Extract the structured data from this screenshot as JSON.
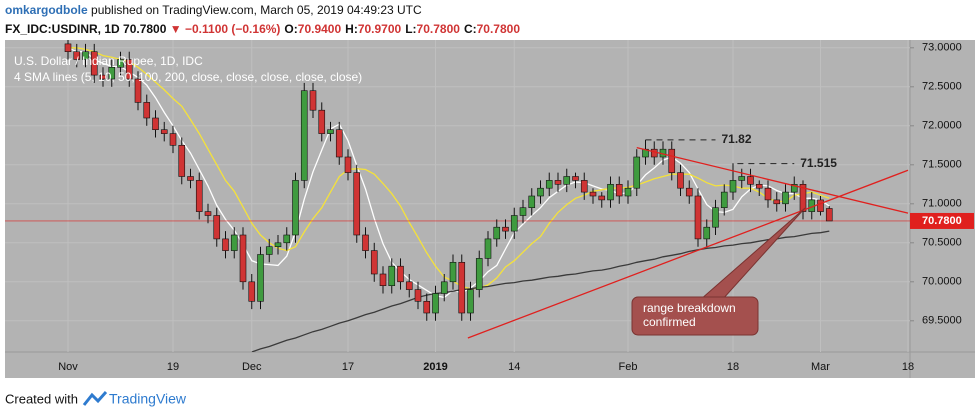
{
  "header": {
    "user": "omkargodbole",
    "published": "published on TradingView.com, March 05, 2019 04:49:23 UTC",
    "symbol": "FX_IDC:USDINR, 1D",
    "last": "70.7800",
    "change": "−0.1100 (−0.16%)",
    "ohlc": [
      {
        "key": "O:",
        "value": "70.9400"
      },
      {
        "key": "H:",
        "value": "70.9700"
      },
      {
        "key": "L:",
        "value": "70.7800"
      },
      {
        "key": "C:",
        "value": "70.7800"
      }
    ]
  },
  "footer": {
    "text": "Created with",
    "brand": "TradingView"
  },
  "chart_data": {
    "type": "candlestick",
    "title": "U.S. Dollar / Indian Rupee, 1D, IDC",
    "subtitle": "4 SMA lines (5, 10, 50, 100, 200, close, close, close, close, close)",
    "categories": [
      "Nov",
      null,
      null,
      null,
      null,
      null,
      null,
      null,
      null,
      null,
      null,
      null,
      "19",
      null,
      null,
      null,
      null,
      null,
      null,
      null,
      null,
      "Dec",
      null,
      null,
      null,
      null,
      null,
      null,
      null,
      null,
      null,
      null,
      "17",
      null,
      null,
      null,
      null,
      null,
      null,
      null,
      null,
      null,
      "2019",
      null,
      null,
      null,
      null,
      null,
      null,
      null,
      null,
      "14",
      null,
      null,
      null,
      null,
      null,
      null,
      null,
      null,
      null,
      null,
      null,
      null,
      "Feb",
      null,
      null,
      null,
      null,
      null,
      null,
      null,
      null,
      null,
      null,
      null,
      "18",
      null,
      null,
      null,
      null,
      null,
      null,
      null,
      null,
      null,
      "Mar",
      null,
      null,
      null,
      null,
      null,
      null,
      null,
      null,
      null,
      "18"
    ],
    "ohlc": [
      [
        73.05,
        73.15,
        72.85,
        72.95
      ],
      [
        72.95,
        73.05,
        72.75,
        72.85
      ],
      [
        72.85,
        73.05,
        72.75,
        72.95
      ],
      [
        72.95,
        73.05,
        72.55,
        72.65
      ],
      [
        72.65,
        72.75,
        72.5,
        72.6
      ],
      [
        72.6,
        72.85,
        72.5,
        72.75
      ],
      [
        72.75,
        72.95,
        72.65,
        72.85
      ],
      [
        72.85,
        72.95,
        72.5,
        72.6
      ],
      [
        72.6,
        72.7,
        72.2,
        72.3
      ],
      [
        72.3,
        72.4,
        72.0,
        72.1
      ],
      [
        72.1,
        72.2,
        71.85,
        71.95
      ],
      [
        71.95,
        72.05,
        71.8,
        71.9
      ],
      [
        71.9,
        72.0,
        71.65,
        71.75
      ],
      [
        71.75,
        71.85,
        71.25,
        71.35
      ],
      [
        71.35,
        71.45,
        71.2,
        71.3
      ],
      [
        71.3,
        71.4,
        70.8,
        70.9
      ],
      [
        70.9,
        71.0,
        70.75,
        70.85
      ],
      [
        70.85,
        70.95,
        70.45,
        70.55
      ],
      [
        70.55,
        70.65,
        70.3,
        70.4
      ],
      [
        70.4,
        70.7,
        70.3,
        70.6
      ],
      [
        70.6,
        70.7,
        69.9,
        70.0
      ],
      [
        70.0,
        70.1,
        69.65,
        69.75
      ],
      [
        69.75,
        70.45,
        69.65,
        70.35
      ],
      [
        70.35,
        70.55,
        70.25,
        70.45
      ],
      [
        70.45,
        70.6,
        70.35,
        70.5
      ],
      [
        70.5,
        70.7,
        70.4,
        70.6
      ],
      [
        70.6,
        71.4,
        70.5,
        71.3
      ],
      [
        71.3,
        72.55,
        71.2,
        72.45
      ],
      [
        72.45,
        72.55,
        72.1,
        72.2
      ],
      [
        72.2,
        72.3,
        71.8,
        71.9
      ],
      [
        71.9,
        72.05,
        71.8,
        71.95
      ],
      [
        71.95,
        72.05,
        71.5,
        71.6
      ],
      [
        71.6,
        71.7,
        71.3,
        71.4
      ],
      [
        71.4,
        71.5,
        70.5,
        70.6
      ],
      [
        70.6,
        70.7,
        70.3,
        70.4
      ],
      [
        70.4,
        70.5,
        70.0,
        70.1
      ],
      [
        70.1,
        70.2,
        69.85,
        69.95
      ],
      [
        69.95,
        70.3,
        69.85,
        70.2
      ],
      [
        70.2,
        70.3,
        69.9,
        70.0
      ],
      [
        70.0,
        70.1,
        69.8,
        69.9
      ],
      [
        69.9,
        70.0,
        69.65,
        69.75
      ],
      [
        69.75,
        69.85,
        69.5,
        69.6
      ],
      [
        69.6,
        69.95,
        69.5,
        69.85
      ],
      [
        69.85,
        70.1,
        69.75,
        70.0
      ],
      [
        70.0,
        70.35,
        69.9,
        70.25
      ],
      [
        70.25,
        70.35,
        69.5,
        69.6
      ],
      [
        69.6,
        70.0,
        69.5,
        69.9
      ],
      [
        69.9,
        70.4,
        69.8,
        70.3
      ],
      [
        70.3,
        70.65,
        70.2,
        70.55
      ],
      [
        70.55,
        70.8,
        70.45,
        70.7
      ],
      [
        70.7,
        70.8,
        70.55,
        70.65
      ],
      [
        70.65,
        70.95,
        70.55,
        70.85
      ],
      [
        70.85,
        71.05,
        70.75,
        70.95
      ],
      [
        70.95,
        71.2,
        70.85,
        71.1
      ],
      [
        71.1,
        71.3,
        71.0,
        71.2
      ],
      [
        71.2,
        71.4,
        71.1,
        71.3
      ],
      [
        71.3,
        71.4,
        71.15,
        71.25
      ],
      [
        71.25,
        71.45,
        71.15,
        71.35
      ],
      [
        71.35,
        71.4,
        71.2,
        71.3
      ],
      [
        71.3,
        71.4,
        71.05,
        71.15
      ],
      [
        71.15,
        71.2,
        71.0,
        71.1
      ],
      [
        71.1,
        71.15,
        70.95,
        71.05
      ],
      [
        71.05,
        71.35,
        70.95,
        71.25
      ],
      [
        71.25,
        71.35,
        71.0,
        71.1
      ],
      [
        71.1,
        71.3,
        71.0,
        71.2
      ],
      [
        71.2,
        71.7,
        71.1,
        71.6
      ],
      [
        71.6,
        71.82,
        71.5,
        71.7
      ],
      [
        71.7,
        71.8,
        71.5,
        71.6
      ],
      [
        71.6,
        71.8,
        71.5,
        71.7
      ],
      [
        71.7,
        71.8,
        71.3,
        71.4
      ],
      [
        71.4,
        71.5,
        71.1,
        71.2
      ],
      [
        71.2,
        71.3,
        71.0,
        71.1
      ],
      [
        71.1,
        71.2,
        70.45,
        70.55
      ],
      [
        70.55,
        70.8,
        70.45,
        70.7
      ],
      [
        70.7,
        71.05,
        70.6,
        70.95
      ],
      [
        70.95,
        71.25,
        70.85,
        71.15
      ],
      [
        71.15,
        71.52,
        71.05,
        71.3
      ],
      [
        71.3,
        71.45,
        71.2,
        71.35
      ],
      [
        71.35,
        71.45,
        71.15,
        71.25
      ],
      [
        71.25,
        71.3,
        71.1,
        71.2
      ],
      [
        71.2,
        71.3,
        70.95,
        71.05
      ],
      [
        71.05,
        71.15,
        70.9,
        71.0
      ],
      [
        71.0,
        71.25,
        70.9,
        71.15
      ],
      [
        71.15,
        71.35,
        71.05,
        71.25
      ],
      [
        71.25,
        71.3,
        70.8,
        70.9
      ],
      [
        70.9,
        71.15,
        70.8,
        71.05
      ],
      [
        71.05,
        71.1,
        70.85,
        70.9
      ],
      [
        70.94,
        70.97,
        70.78,
        70.78
      ],
      null,
      null,
      null,
      null,
      null,
      null,
      null,
      null,
      null
    ],
    "up_color": "#3f9b3f",
    "down_color": "#d03434",
    "series": [
      {
        "color": "#ffffff",
        "values": [
          73.0,
          72.95,
          72.95,
          72.85,
          72.8,
          72.76,
          72.76,
          72.69,
          72.62,
          72.52,
          72.36,
          72.17,
          72.0,
          71.81,
          71.65,
          71.44,
          71.23,
          70.98,
          70.8,
          70.66,
          70.48,
          70.27,
          70.23,
          70.22,
          70.21,
          70.33,
          70.64,
          71.06,
          71.41,
          71.69,
          71.96,
          72.02,
          71.81,
          71.49,
          71.19,
          70.81,
          70.49,
          70.25,
          70.13,
          70.03,
          69.96,
          69.89,
          69.82,
          69.8,
          69.89,
          69.86,
          69.92,
          70.01,
          70.13,
          70.21,
          70.42,
          70.63,
          70.74,
          70.85,
          70.95,
          71.08,
          71.16,
          71.24,
          71.28,
          71.27,
          71.23,
          71.19,
          71.17,
          71.13,
          71.14,
          71.24,
          71.37,
          71.46,
          71.56,
          71.6,
          71.52,
          71.4,
          71.19,
          70.99,
          70.9,
          70.89,
          70.93,
          71.09,
          71.19,
          71.24,
          71.23,
          71.17,
          71.13,
          71.13,
          71.07,
          71.07,
          71.05,
          70.97,
          null,
          null,
          null,
          null,
          null,
          null,
          null,
          null,
          null
        ]
      },
      {
        "color": "#f5e23a",
        "values": [
          73.0,
          73.0,
          72.98,
          72.95,
          72.9,
          72.88,
          72.85,
          72.82,
          72.75,
          72.66,
          72.56,
          72.46,
          72.35,
          72.25,
          72.08,
          71.9,
          71.7,
          71.5,
          71.3,
          71.16,
          70.96,
          70.75,
          70.6,
          70.5,
          70.43,
          70.4,
          70.45,
          70.64,
          70.81,
          70.95,
          71.15,
          71.35,
          71.44,
          71.45,
          71.44,
          71.38,
          71.26,
          71.13,
          70.97,
          70.76,
          70.57,
          70.37,
          70.2,
          70.06,
          70.01,
          69.94,
          69.91,
          69.92,
          69.96,
          70.05,
          70.19,
          70.27,
          70.38,
          70.49,
          70.58,
          70.75,
          70.89,
          70.99,
          71.07,
          71.11,
          71.16,
          71.18,
          71.2,
          71.2,
          71.21,
          71.24,
          71.28,
          71.32,
          71.35,
          71.38,
          71.38,
          71.38,
          71.33,
          71.27,
          71.23,
          71.24,
          71.23,
          71.2,
          71.2,
          71.15,
          71.07,
          71.03,
          71.03,
          71.11,
          71.13,
          71.15,
          71.11,
          71.07,
          null,
          null,
          null,
          null,
          null,
          null,
          null,
          null,
          null
        ]
      },
      {
        "color": "#3a3a3a",
        "values": [
          null,
          null,
          null,
          null,
          null,
          null,
          null,
          null,
          null,
          null,
          null,
          null,
          null,
          null,
          null,
          null,
          null,
          null,
          null,
          null,
          null,
          69.1,
          69.14,
          69.17,
          69.21,
          69.25,
          69.28,
          69.32,
          69.36,
          69.39,
          69.43,
          69.47,
          69.5,
          69.54,
          69.58,
          69.61,
          69.65,
          69.69,
          69.72,
          69.76,
          69.8,
          69.83,
          69.85,
          69.86,
          69.88,
          69.9,
          69.91,
          69.93,
          69.94,
          69.96,
          69.98,
          69.99,
          70.01,
          70.02,
          70.04,
          70.06,
          70.07,
          70.09,
          70.1,
          70.12,
          70.14,
          70.15,
          70.17,
          70.2,
          70.22,
          70.25,
          70.27,
          70.29,
          70.32,
          70.34,
          70.36,
          70.39,
          70.41,
          70.43,
          70.44,
          70.46,
          70.47,
          70.49,
          70.5,
          70.52,
          70.54,
          70.55,
          70.57,
          70.58,
          70.6,
          70.62,
          70.63,
          70.65,
          null,
          null,
          null,
          null,
          null,
          null,
          null,
          null,
          null
        ]
      }
    ],
    "ylim": [
      69.1,
      73.1
    ],
    "yticks": [
      {
        "value": 69.5,
        "label": "69.5000"
      },
      {
        "value": 70,
        "label": "70.0000"
      },
      {
        "value": 70.5,
        "label": "70.5000"
      },
      {
        "value": 71,
        "label": "71.0000"
      },
      {
        "value": 71.5,
        "label": "71.5000"
      },
      {
        "value": 72,
        "label": "72.0000"
      },
      {
        "value": 72.5,
        "label": "72.5000"
      },
      {
        "value": 73,
        "label": "73.0000"
      }
    ],
    "grid": true,
    "trendlines": [
      {
        "color": "#e0201e",
        "x": [
          45.7,
          96
        ],
        "y": [
          69.28,
          71.43
        ]
      },
      {
        "color": "#e0201e",
        "x": [
          65,
          96
        ],
        "y": [
          71.72,
          70.88
        ]
      }
    ],
    "levels": [
      {
        "value": 71.82,
        "from": 66,
        "to": 74
      },
      {
        "value": 71.515,
        "from": 76.5,
        "to": 83
      }
    ],
    "last_price": {
      "value": 70.78,
      "label": "70.7800",
      "color": "#e0201e"
    },
    "callout": {
      "lines": [
        "range breakdown",
        "confirmed"
      ]
    }
  }
}
